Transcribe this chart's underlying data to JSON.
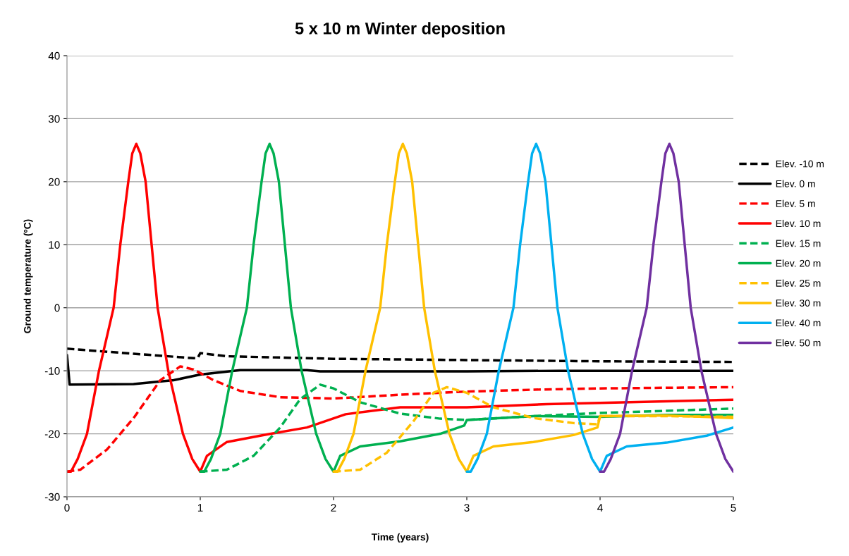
{
  "chart_data": {
    "type": "line",
    "title": "5 x 10 m Winter deposition",
    "xlabel": "Time (years)",
    "ylabel": "Ground temperature (ºC)",
    "xlim": [
      0,
      5
    ],
    "ylim": [
      -30,
      40
    ],
    "xticks": [
      0,
      1,
      2,
      3,
      4,
      5
    ],
    "yticks": [
      -30,
      -20,
      -10,
      0,
      10,
      20,
      30,
      40
    ],
    "grid": "y",
    "legend": "right",
    "marker": "none",
    "series": [
      {
        "name": "Elev. -10 m",
        "color": "#000000",
        "line_style": "dashed",
        "x": [
          0,
          0.5,
          0.95,
          0.98,
          1.0,
          1.2,
          2,
          3,
          4,
          5
        ],
        "values": [
          -6.5,
          -7.3,
          -8.0,
          -8.0,
          -7.2,
          -7.7,
          -8.1,
          -8.3,
          -8.5,
          -8.6
        ]
      },
      {
        "name": "Elev. 0 m",
        "color": "#000000",
        "line_style": "solid",
        "x": [
          0,
          0.02,
          0.5,
          0.8,
          1.0,
          1.3,
          1.8,
          1.9,
          3,
          3.7,
          5
        ],
        "values": [
          -7.5,
          -12.2,
          -12.1,
          -11.5,
          -10.6,
          -9.9,
          -9.9,
          -10.1,
          -10.1,
          -10.0,
          -10.0
        ]
      },
      {
        "name": "Elev. 5 m",
        "color": "#ff0000",
        "line_style": "dashed",
        "x": [
          0,
          0.1,
          0.3,
          0.5,
          0.7,
          0.85,
          0.95,
          1.1,
          1.3,
          1.6,
          2,
          2.5,
          3,
          3.5,
          4,
          5
        ],
        "values": [
          -26,
          -25.7,
          -22.5,
          -17.5,
          -11.5,
          -9.3,
          -9.8,
          -11.5,
          -13.2,
          -14.2,
          -14.4,
          -13.8,
          -13.3,
          -13.0,
          -12.8,
          -12.6
        ]
      },
      {
        "name": "Elev. 10 m",
        "color": "#ff0000",
        "line_style": "solid",
        "x": [
          0,
          0.03,
          0.08,
          0.15,
          0.24,
          0.35,
          0.4,
          0.46,
          0.49,
          0.52,
          0.55,
          0.59,
          0.635,
          0.68,
          0.76,
          0.87,
          0.94,
          1.0,
          1.05,
          1.2,
          1.5,
          1.8,
          2.09,
          2.5,
          3,
          3.6,
          4,
          5
        ],
        "values": [
          -26,
          -26,
          -24,
          -20,
          -10,
          0,
          10,
          20,
          24.5,
          26,
          24.5,
          20,
          10,
          0,
          -10,
          -20,
          -24,
          -26,
          -23.5,
          -21.3,
          -20.1,
          -19.0,
          -16.9,
          -15.8,
          -15.8,
          -15.3,
          -15.1,
          -14.6
        ]
      },
      {
        "name": "Elev. 15 m",
        "color": "#00b050",
        "line_style": "dashed",
        "x": [
          1,
          1.2,
          1.4,
          1.6,
          1.75,
          1.9,
          2.0,
          2.2,
          2.5,
          2.8,
          3.0,
          3.5,
          4,
          5
        ],
        "values": [
          -26,
          -25.7,
          -23.5,
          -19,
          -14.5,
          -12.2,
          -12.8,
          -15,
          -16.8,
          -17.6,
          -17.8,
          -17.2,
          -16.7,
          -16.0
        ]
      },
      {
        "name": "Elev. 20 m",
        "color": "#00b050",
        "line_style": "solid",
        "x": [
          1,
          1.03,
          1.08,
          1.15,
          1.24,
          1.35,
          1.4,
          1.46,
          1.49,
          1.52,
          1.55,
          1.59,
          1.635,
          1.68,
          1.76,
          1.87,
          1.94,
          2.0,
          2.05,
          2.2,
          2.5,
          2.8,
          2.98,
          3.0,
          3.5,
          4,
          4.5,
          5
        ],
        "values": [
          -26,
          -26,
          -24,
          -20,
          -10,
          0,
          10,
          20,
          24.5,
          26,
          24.5,
          20,
          10,
          0,
          -10,
          -20,
          -24,
          -26,
          -23.5,
          -22,
          -21.2,
          -20.0,
          -18.7,
          -17.8,
          -17.2,
          -17.3,
          -17.0,
          -17.0
        ]
      },
      {
        "name": "Elev. 25 m",
        "color": "#ffc000",
        "line_style": "dashed",
        "x": [
          2,
          2.2,
          2.4,
          2.6,
          2.75,
          2.85,
          3.0,
          3.2,
          3.5,
          3.8,
          3.98,
          4.0,
          4.5,
          5
        ],
        "values": [
          -26,
          -25.7,
          -23,
          -18,
          -13.5,
          -12.6,
          -13.5,
          -15.8,
          -17.5,
          -18.3,
          -18.5,
          -17.2,
          -17.2,
          -17.3
        ]
      },
      {
        "name": "Elev. 30 m",
        "color": "#ffc000",
        "line_style": "solid",
        "x": [
          2,
          2.03,
          2.08,
          2.15,
          2.24,
          2.35,
          2.4,
          2.46,
          2.49,
          2.52,
          2.55,
          2.59,
          2.635,
          2.68,
          2.76,
          2.87,
          2.94,
          3.0,
          3.05,
          3.2,
          3.5,
          3.8,
          3.98,
          4.0,
          4.5,
          5
        ],
        "values": [
          -26,
          -26,
          -24,
          -20,
          -10,
          0,
          10,
          20,
          24.5,
          26,
          24.5,
          20,
          10,
          0,
          -10,
          -20,
          -24,
          -26,
          -23.5,
          -22,
          -21.3,
          -20.2,
          -19,
          -17.2,
          -17.1,
          -17.5
        ]
      },
      {
        "name": "Elev. 40 m",
        "color": "#00b0f0",
        "line_style": "solid",
        "x": [
          3,
          3.03,
          3.08,
          3.15,
          3.24,
          3.35,
          3.4,
          3.46,
          3.49,
          3.52,
          3.55,
          3.59,
          3.635,
          3.68,
          3.76,
          3.87,
          3.94,
          4.0,
          4.05,
          4.2,
          4.5,
          4.8,
          5
        ],
        "values": [
          -26,
          -26,
          -24,
          -20,
          -10,
          0,
          10,
          20,
          24.5,
          26,
          24.5,
          20,
          10,
          0,
          -10,
          -20,
          -24,
          -26,
          -23.5,
          -22,
          -21.4,
          -20.3,
          -19
        ]
      },
      {
        "name": "Elev. 50 m",
        "color": "#7030a0",
        "line_style": "solid",
        "x": [
          4,
          4.03,
          4.08,
          4.15,
          4.24,
          4.35,
          4.4,
          4.46,
          4.49,
          4.52,
          4.55,
          4.59,
          4.635,
          4.68,
          4.76,
          4.87,
          4.94,
          5.0
        ],
        "values": [
          -26,
          -26,
          -24,
          -20,
          -10,
          0,
          10,
          20,
          24.5,
          26,
          24.5,
          20,
          10,
          0,
          -10,
          -20,
          -24,
          -26
        ]
      }
    ]
  }
}
